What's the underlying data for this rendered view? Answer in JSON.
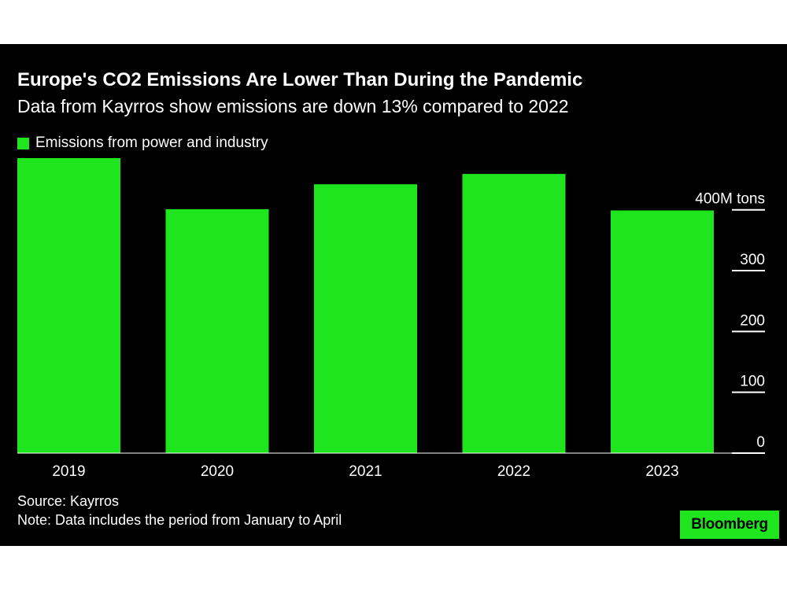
{
  "colors": {
    "background": "#000000",
    "bar": "#1fe51f",
    "text": "#ffffff",
    "brand_bg": "#1fe51f"
  },
  "header": {
    "title": "Europe's CO2 Emissions Are Lower Than During the Pandemic",
    "subtitle": "Data from Kayrros show emissions are down 13% compared to 2022"
  },
  "footer": {
    "source": "Source: Kayrros",
    "note": "Note: Data includes the period from January to April",
    "brand": "Bloomberg"
  },
  "chart_data": {
    "type": "bar",
    "categories": [
      "2019",
      "2020",
      "2021",
      "2022",
      "2023"
    ],
    "series": [
      {
        "name": "Emissions from power and industry",
        "values": [
          485,
          401,
          442,
          459,
          399
        ]
      }
    ],
    "y_ticks": [
      {
        "value": 0,
        "label": "0"
      },
      {
        "value": 100,
        "label": "100"
      },
      {
        "value": 200,
        "label": "200"
      },
      {
        "value": 300,
        "label": "300"
      },
      {
        "value": 400,
        "label": "400M tons"
      }
    ],
    "ylim": [
      0,
      485
    ],
    "y_axis_side": "right",
    "grid": false,
    "legend_position": "top-left"
  }
}
